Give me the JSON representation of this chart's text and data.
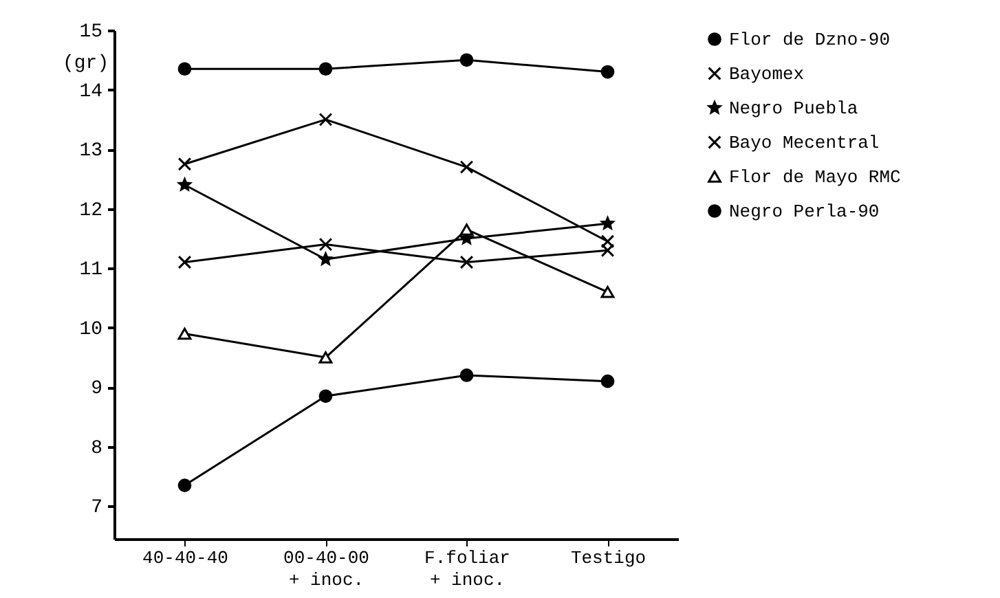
{
  "chart_data": {
    "type": "line",
    "ylabel": "(gr)",
    "categories": [
      "40-40-40",
      "00-40-00\n+ inoc.",
      "F.foliar\n+ inoc.",
      "Testigo"
    ],
    "series": [
      {
        "name": "Flor de Dzno-90",
        "color": "#000000",
        "marker": "circle",
        "values": [
          14.35,
          14.35,
          14.5,
          14.3
        ]
      },
      {
        "name": "Bayomex",
        "color": "#000000",
        "marker": "cross",
        "values": [
          12.75,
          13.5,
          12.7,
          11.45
        ]
      },
      {
        "name": "Negro Puebla",
        "color": "#000000",
        "marker": "star",
        "values": [
          12.4,
          11.15,
          11.5,
          11.75
        ]
      },
      {
        "name": "Bayo Mecentral",
        "color": "#000000",
        "marker": "cross",
        "values": [
          11.1,
          11.4,
          11.1,
          11.3
        ]
      },
      {
        "name": "Flor de Mayo RMC",
        "color": "#000000",
        "marker": "triangle",
        "values": [
          9.9,
          9.5,
          11.65,
          10.6
        ]
      },
      {
        "name": "Negro Perla-90",
        "color": "#000000",
        "marker": "circle",
        "values": [
          7.35,
          8.85,
          9.2,
          9.1
        ]
      }
    ],
    "ylim": [
      6.45,
      15
    ],
    "yticks": [
      7,
      8,
      9,
      10,
      11,
      12,
      13,
      14,
      15
    ],
    "grid": false,
    "legend": "right",
    "line_style": "solid"
  }
}
